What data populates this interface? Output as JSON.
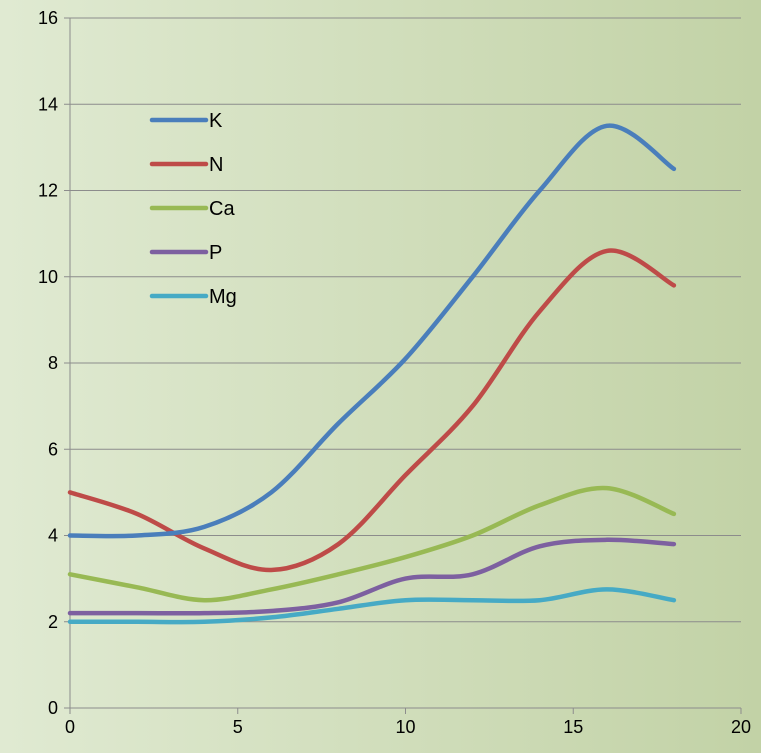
{
  "chart_data": {
    "type": "line",
    "title": "",
    "xlabel": "",
    "ylabel": "",
    "xlim": [
      0,
      20
    ],
    "ylim": [
      0,
      16
    ],
    "x_ticks": [
      0,
      5,
      10,
      15,
      20
    ],
    "y_ticks": [
      0,
      2,
      4,
      6,
      8,
      10,
      12,
      14,
      16
    ],
    "grid": "horizontal",
    "legend_position": "top-left",
    "background": {
      "left": "#e0ead2",
      "right": "#c2d2a6"
    },
    "x": [
      0,
      2,
      4,
      6,
      8,
      10,
      12,
      14,
      16,
      18
    ],
    "series": [
      {
        "name": "K",
        "color": "#4a7ebb",
        "values": [
          4.0,
          4.0,
          4.2,
          5.0,
          6.6,
          8.1,
          10.0,
          12.0,
          13.5,
          12.5
        ]
      },
      {
        "name": "N",
        "color": "#be4b48",
        "values": [
          5.0,
          4.5,
          3.7,
          3.2,
          3.8,
          5.4,
          7.0,
          9.2,
          10.6,
          9.8
        ]
      },
      {
        "name": "Ca",
        "color": "#98b954",
        "values": [
          3.1,
          2.8,
          2.5,
          2.75,
          3.1,
          3.5,
          4.0,
          4.7,
          5.1,
          4.5
        ]
      },
      {
        "name": "P",
        "color": "#7d60a0",
        "values": [
          2.2,
          2.2,
          2.2,
          2.25,
          2.45,
          3.0,
          3.1,
          3.75,
          3.9,
          3.8
        ]
      },
      {
        "name": "Mg",
        "color": "#46aac5",
        "values": [
          2.0,
          2.0,
          2.0,
          2.1,
          2.3,
          2.5,
          2.5,
          2.5,
          2.75,
          2.5
        ]
      }
    ]
  }
}
